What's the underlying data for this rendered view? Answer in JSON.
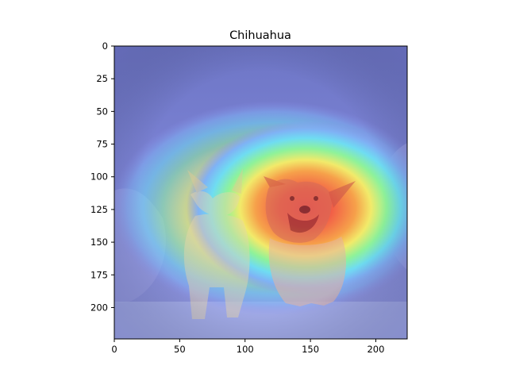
{
  "chart_data": {
    "type": "heatmap",
    "title": "Chihuahua",
    "xlabel": "",
    "ylabel": "",
    "xlim": [
      0,
      224
    ],
    "ylim": [
      224,
      0
    ],
    "x_ticks": [
      0,
      50,
      100,
      150,
      200
    ],
    "y_ticks": [
      0,
      25,
      50,
      75,
      100,
      125,
      150,
      175,
      200
    ],
    "x_tick_labels": [
      "0",
      "50",
      "100",
      "150",
      "200"
    ],
    "y_tick_labels": [
      "0",
      "25",
      "50",
      "75",
      "100",
      "125",
      "150",
      "175",
      "200"
    ],
    "grid": false,
    "colormap": "jet",
    "overlay": "saliency heatmap over photo of two dogs",
    "hotspots": [
      {
        "x": 145,
        "y": 128,
        "intensity": 1.0
      },
      {
        "x": 95,
        "y": 132,
        "intensity": 0.65
      }
    ]
  }
}
